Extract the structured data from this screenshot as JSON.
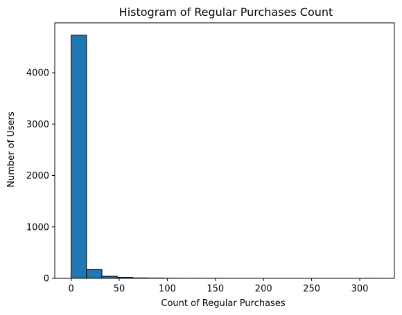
{
  "chart_data": {
    "type": "bar",
    "title": "Histogram of Regular Purchases Count",
    "xlabel": "Count of Regular Purchases",
    "ylabel": "Number of Users",
    "xlim": [
      -17,
      336
    ],
    "ylim": [
      0,
      4970
    ],
    "xticks": [
      0,
      50,
      100,
      150,
      200,
      250,
      300
    ],
    "yticks": [
      0,
      1000,
      2000,
      3000,
      4000
    ],
    "bin_edges": [
      0,
      16,
      32,
      48,
      64,
      80,
      96,
      112,
      128,
      144,
      160,
      176,
      192,
      208,
      224,
      240,
      256,
      272,
      288,
      304,
      320
    ],
    "values": [
      4730,
      170,
      40,
      20,
      8,
      5,
      2,
      1,
      1,
      1,
      0,
      0,
      0,
      0,
      0,
      0,
      0,
      0,
      0,
      1
    ],
    "bar_color": "#1f77b4",
    "edge_color": "#000000",
    "grid": false
  }
}
